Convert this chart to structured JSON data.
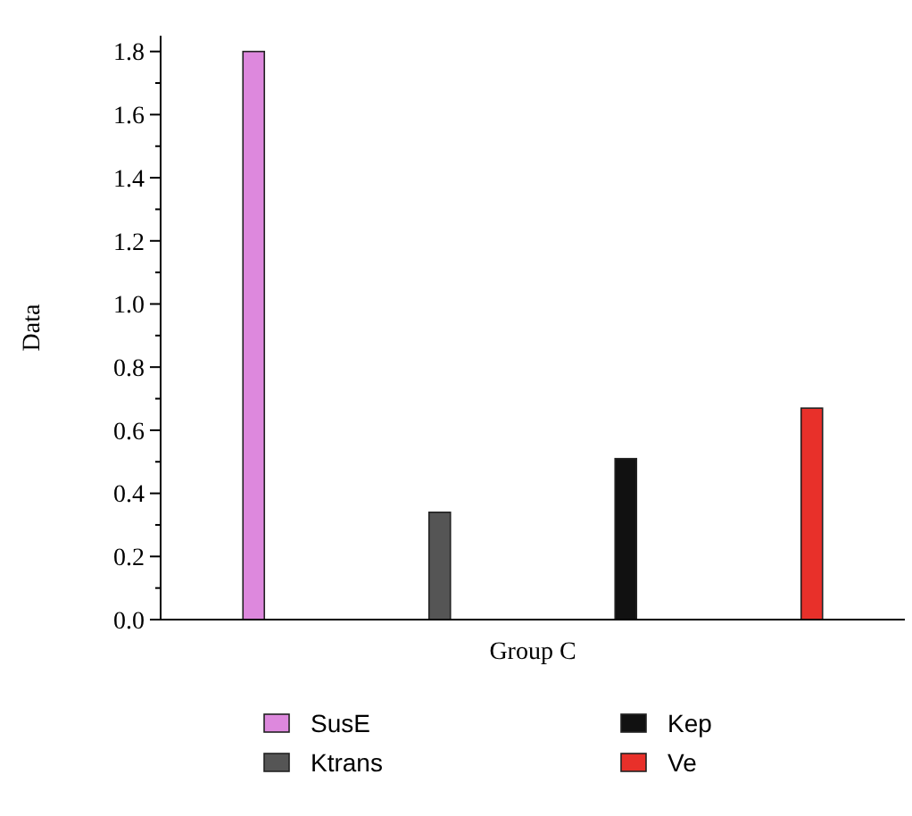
{
  "chart_data": {
    "type": "bar",
    "ylabel": "Data",
    "categories": [
      "Group C"
    ],
    "series": [
      {
        "name": "SusE",
        "color": "#dd88dd",
        "values": [
          1.8
        ]
      },
      {
        "name": "Ktrans",
        "color": "#555555",
        "values": [
          0.34
        ]
      },
      {
        "name": "Kep",
        "color": "#111111",
        "values": [
          0.51
        ]
      },
      {
        "name": "Ve",
        "color": "#e8302a",
        "values": [
          0.67
        ]
      }
    ],
    "ylim": [
      0,
      1.85
    ],
    "yticks": [
      {
        "value": 0,
        "label": "0.0"
      },
      {
        "value": 0.1,
        "label": null
      },
      0.2,
      {
        "value": 0.3,
        "label": null
      },
      0.4,
      {
        "value": 0.5,
        "label": null
      },
      0.6,
      {
        "value": 0.7,
        "label": null
      },
      0.8,
      {
        "value": 0.9,
        "label": null
      },
      {
        "value": 1,
        "label": "1.0"
      },
      {
        "value": 1.1,
        "label": null
      },
      1.2,
      {
        "value": 1.3,
        "label": null
      },
      1.4,
      {
        "value": 1.5,
        "label": null
      },
      1.6,
      {
        "value": 1.7,
        "label": null
      },
      1.8
    ],
    "grid": false,
    "legend": "bottom"
  }
}
